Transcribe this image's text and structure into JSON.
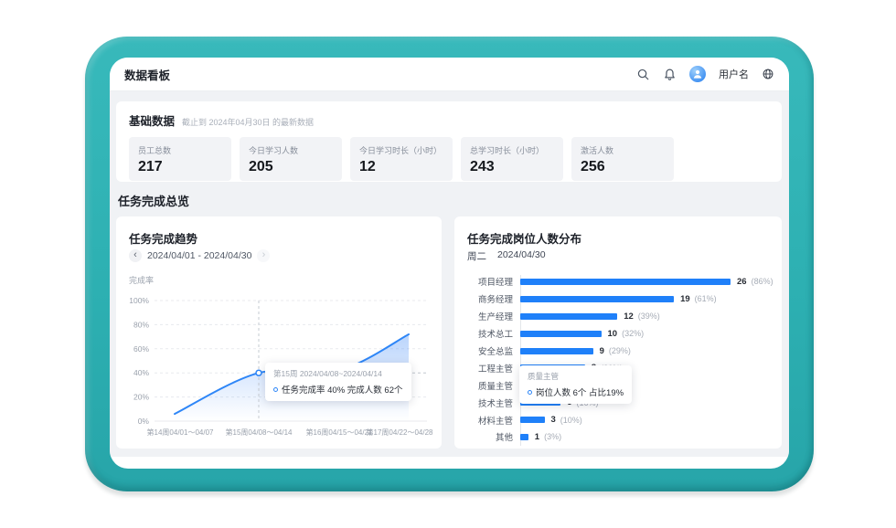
{
  "header": {
    "title": "数据看板",
    "username": "用户名"
  },
  "base_stats": {
    "title": "基础数据",
    "subtitle": "截止到 2024年04月30日 的最新数据",
    "cards": [
      {
        "label": "员工总数",
        "value": "217"
      },
      {
        "label": "今日学习人数",
        "value": "205"
      },
      {
        "label": "今日学习时长（小时）",
        "value": "12"
      },
      {
        "label": "总学习时长（小时）",
        "value": "243"
      },
      {
        "label": "激活人数",
        "value": "256"
      }
    ]
  },
  "section_title": "任务完成总览",
  "trend": {
    "title": "任务完成趋势",
    "prev_icon": "‹",
    "next_icon": "›",
    "date_range": "2024/04/01 - 2024/04/30",
    "ylabel": "完成率",
    "tooltip_title": "第15周 2024/04/08~2024/04/14",
    "tooltip_text": "任务完成率 40%  完成人数 62个"
  },
  "distribution": {
    "title": "任务完成岗位人数分布",
    "weekday": "周二",
    "date": "2024/04/30",
    "tooltip_title": "质量主管",
    "tooltip_text": "岗位人数 6个  占比19%"
  },
  "colors": {
    "frame_teal": "#2fb1b3",
    "accent_blue": "#1f80f9",
    "line_blue": "#2e86f7",
    "bar_highlight": "#7db7fb",
    "grid_gray": "#e8eaee",
    "tick_gray": "#9aa1ac"
  },
  "chart_data": [
    {
      "type": "line",
      "title": "任务完成趋势",
      "x": [
        "第14周04/01～04/07",
        "第15周04/08～04/14",
        "第16周04/15～04/21",
        "第17周04/22～04/28"
      ],
      "series": [
        {
          "name": "任务完成率",
          "values": [
            6,
            40,
            42,
            72
          ]
        }
      ],
      "ylabel": "完成率",
      "ylim": [
        0,
        100
      ],
      "yticks": [
        "0%",
        "20%",
        "40%",
        "60%",
        "80%",
        "100%"
      ],
      "grid": true,
      "highlight_index": 1,
      "highlight_label": "第15周 2024/04/08~2024/04/14 任务完成率 40% 完成人数 62个"
    },
    {
      "type": "bar",
      "orientation": "horizontal",
      "title": "任务完成岗位人数分布",
      "categories": [
        "项目经理",
        "商务经理",
        "生产经理",
        "技术总工",
        "安全总监",
        "工程主管",
        "质量主管",
        "技术主管",
        "材料主管",
        "其他"
      ],
      "values": [
        26,
        19,
        12,
        10,
        9,
        8,
        6,
        5,
        3,
        1
      ],
      "percent_labels": [
        "(86%)",
        "(61%)",
        "(39%)",
        "(32%)",
        "(29%)",
        "(26%)",
        "(19%)",
        "(16%)",
        "(10%)",
        "(3%)"
      ],
      "xlim": [
        0,
        30
      ],
      "highlight_index": 6,
      "highlight_label": "质量主管 岗位人数 6个 占比19%"
    }
  ]
}
